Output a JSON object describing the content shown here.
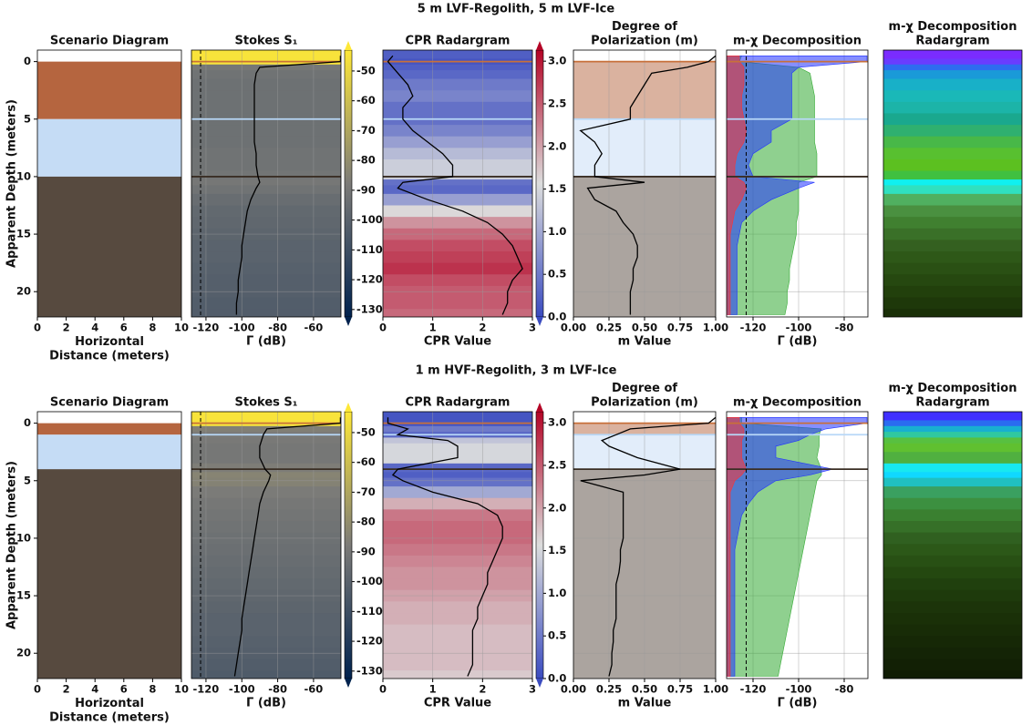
{
  "chart_data": [
    {
      "title": "5 m LVF-Regolith, 5 m LVF-Ice",
      "ylabel": "Apparent Depth (meters)",
      "ylim": [
        22.2,
        -1
      ],
      "yticks": [
        0,
        5,
        10,
        15,
        20
      ],
      "depth": [
        -0.5,
        0,
        0.5,
        1,
        2,
        3,
        4,
        5,
        6,
        7,
        8,
        9,
        10,
        10.5,
        11,
        12,
        13,
        14,
        15,
        16,
        17,
        18,
        19,
        20,
        21,
        22
      ],
      "layers": [
        {
          "top": 0,
          "color": "#b5653f"
        },
        {
          "top": 5,
          "color": "#c5dcf5"
        },
        {
          "top": 10,
          "color": "#574a3f"
        }
      ],
      "interfaces": [
        {
          "depth": 0,
          "color": "#c8703a"
        },
        {
          "depth": 5,
          "color": "#b8d8f8"
        },
        {
          "depth": 10,
          "color": "#3a2e24"
        }
      ],
      "panels": [
        {
          "type": "layers",
          "title": "Scenario Diagram",
          "xlabel": "Horizontal\nDistance (meters)",
          "xlim": [
            0,
            10
          ],
          "xticks": [
            0,
            2,
            4,
            6,
            8,
            10
          ]
        },
        {
          "type": "profile",
          "title": "Stokes S₁",
          "xlabel": "Γ (dB)",
          "xlim": [
            -128.1,
            -44.7
          ],
          "xticks": [
            -120,
            -100,
            -80,
            -60
          ],
          "values": [
            -45,
            -45,
            -90,
            -92,
            -93,
            -93,
            -93,
            -93,
            -93,
            -93,
            -92,
            -92,
            -91,
            -90,
            -92,
            -95,
            -97,
            -98,
            -99,
            -100,
            -100,
            -101,
            -102,
            -102,
            -103,
            -103
          ],
          "color": "#000000",
          "background": "colormap",
          "colormap": [
            "#00224e",
            "#7c7b78",
            "#fee838"
          ],
          "clim": [
            -132.5,
            -43
          ],
          "cticks": [
            -130,
            -120,
            -110,
            -100,
            -90,
            -80,
            -70,
            -60,
            -50
          ],
          "reference_line": -123,
          "grid": true
        },
        {
          "type": "profile",
          "title": "CPR Radargram",
          "xlabel": "CPR Value",
          "xlim": [
            0,
            3
          ],
          "xticks": [
            0,
            1,
            2,
            3
          ],
          "values": [
            0.2,
            0.1,
            0.2,
            0.3,
            0.5,
            0.6,
            0.4,
            0.4,
            0.6,
            0.9,
            1.2,
            1.4,
            1.4,
            0.4,
            0.3,
            0.9,
            1.6,
            2.1,
            2.4,
            2.6,
            2.7,
            2.8,
            2.6,
            2.5,
            2.5,
            2.4
          ],
          "color": "#000000",
          "background": "colormap",
          "colormap": [
            "#3b4cc0",
            "#dcdddd",
            "#b40426"
          ],
          "clim": [
            0,
            3.13
          ],
          "cticks": [
            {
              "value": 0,
              "label": "0.0"
            },
            0.5,
            {
              "value": 1,
              "label": "1.0"
            },
            1.5,
            {
              "value": 2,
              "label": "2.0"
            },
            2.5,
            {
              "value": 3,
              "label": "3.0"
            }
          ],
          "grid": true
        },
        {
          "type": "profile",
          "title": "Degree of\nPolarization (m)",
          "xlabel": "m Value",
          "xlim": [
            0,
            1
          ],
          "xticks": [
            {
              "value": 0,
              "label": "0.00"
            },
            0.25,
            {
              "value": 0.5,
              "label": "0.50"
            },
            0.75,
            {
              "value": 1,
              "label": "1.00"
            }
          ],
          "values": [
            1.0,
            0.95,
            0.8,
            0.55,
            0.5,
            0.45,
            0.4,
            0.4,
            0.05,
            0.15,
            0.2,
            0.15,
            0.15,
            0.5,
            0.1,
            0.15,
            0.3,
            0.35,
            0.42,
            0.45,
            0.45,
            0.42,
            0.42,
            0.4,
            0.4,
            0.4
          ],
          "color": "#000000",
          "background": "layers",
          "layer_opacity": 0.5,
          "grid": true
        },
        {
          "type": "area",
          "title": "m-χ Decomposition",
          "xlabel": "Γ (dB)",
          "xlim": [
            -131.6,
            -69.6
          ],
          "xticks": [
            -120,
            -100,
            -80
          ],
          "series": [
            {
              "color": "#33aa33",
              "values": [
                -125,
                -126,
                -100,
                -95,
                -94,
                -93,
                -93,
                -93,
                -93,
                -93,
                -92,
                -92,
                -92,
                -100,
                -100,
                -100,
                -100,
                -101,
                -101,
                -102,
                -103,
                -104,
                -104,
                -105,
                -105,
                -106
              ]
            },
            {
              "color": "#2233ff",
              "values": [
                -70,
                -70,
                -100,
                -103,
                -103,
                -103,
                -103,
                -103,
                -112,
                -112,
                -120,
                -122,
                -120,
                -93,
                -100,
                -112,
                -120,
                -125,
                -126,
                -127,
                -127,
                -127,
                -127,
                -127,
                -127,
                -127
              ]
            },
            {
              "color": "#ff3333",
              "values": [
                -126,
                -126,
                -124,
                -124,
                -124,
                -125,
                -125,
                -124,
                -123,
                -124,
                -127,
                -128,
                -128,
                -124,
                -123,
                -125,
                -128,
                -129,
                -130,
                -130,
                -130,
                -130,
                -130,
                -130,
                -130,
                -130
              ]
            }
          ],
          "opacity": 0.55,
          "reference_line": -123,
          "grid": true
        },
        {
          "type": "bands",
          "title": "m-χ Decomposition\nRadargram",
          "band_colors": [
            "#7a2cff",
            "#6a3cff",
            "#2e6cf0",
            "#1a9ad8",
            "#18b0c8",
            "#1ab8b8",
            "#1cb4a8",
            "#1aa88e",
            "#2fb070",
            "#48b848",
            "#58c030",
            "#5cc020",
            "#40c040",
            "#10f0f0",
            "#30e0c0",
            "#50b060",
            "#4a9040",
            "#408030",
            "#3a7028",
            "#346020",
            "#2e5818",
            "#2a5014",
            "#264810",
            "#22400c",
            "#1e380a",
            "#1a3008"
          ]
        }
      ]
    },
    {
      "title": "1 m HVF-Regolith, 3 m LVF-Ice",
      "ylabel": "Apparent Depth (meters)",
      "ylim": [
        22.2,
        -1
      ],
      "yticks": [
        0,
        5,
        10,
        15,
        20
      ],
      "depth": [
        -0.5,
        0,
        0.5,
        1,
        1.5,
        2,
        3,
        4,
        4.5,
        5,
        6,
        7,
        8,
        9,
        10,
        11,
        12,
        13,
        14,
        15,
        16,
        17,
        18,
        19,
        20,
        21,
        22
      ],
      "layers": [
        {
          "top": 0,
          "color": "#b5653f"
        },
        {
          "top": 1,
          "color": "#c5dcf5"
        },
        {
          "top": 4,
          "color": "#574a3f"
        }
      ],
      "interfaces": [
        {
          "depth": 0,
          "color": "#c8703a"
        },
        {
          "depth": 1,
          "color": "#b8d8f8"
        },
        {
          "depth": 4,
          "color": "#3a2e24"
        }
      ],
      "panels": [
        {
          "type": "layers",
          "title": "Scenario Diagram",
          "xlabel": "Horizontal\nDistance (meters)",
          "xlim": [
            0,
            10
          ],
          "xticks": [
            0,
            2,
            4,
            6,
            8,
            10
          ]
        },
        {
          "type": "profile",
          "title": "Stokes S₁",
          "xlabel": "Γ (dB)",
          "xlim": [
            -128.1,
            -44.7
          ],
          "xticks": [
            -120,
            -100,
            -80,
            -60
          ],
          "values": [
            -45,
            -45,
            -86,
            -88,
            -89,
            -90,
            -90,
            -87,
            -84,
            -85,
            -88,
            -90,
            -91,
            -92,
            -93,
            -94,
            -95,
            -96,
            -97,
            -98,
            -99,
            -100,
            -100,
            -101,
            -102,
            -103,
            -104
          ],
          "color": "#000000",
          "background": "colormap",
          "colormap": [
            "#00224e",
            "#7c7b78",
            "#fee838"
          ],
          "clim": [
            -132.5,
            -43
          ],
          "cticks": [
            -130,
            -120,
            -110,
            -100,
            -90,
            -80,
            -70,
            -60,
            -50
          ],
          "reference_line": -123,
          "grid": true
        },
        {
          "type": "profile",
          "title": "CPR Radargram",
          "xlabel": "CPR Value",
          "xlim": [
            0,
            3
          ],
          "xticks": [
            0,
            1,
            2,
            3
          ],
          "values": [
            0.1,
            0.1,
            0.5,
            0.3,
            1.3,
            1.5,
            1.5,
            0.3,
            0.2,
            0.4,
            1.0,
            1.9,
            2.3,
            2.4,
            2.4,
            2.3,
            2.2,
            2.1,
            2.1,
            2.0,
            1.9,
            1.9,
            1.8,
            1.8,
            1.8,
            1.8,
            1.7
          ],
          "color": "#000000",
          "background": "colormap",
          "colormap": [
            "#3b4cc0",
            "#dcdddd",
            "#b40426"
          ],
          "clim": [
            0,
            3.13
          ],
          "cticks": [
            {
              "value": 0,
              "label": "0.0"
            },
            0.5,
            {
              "value": 1,
              "label": "1.0"
            },
            1.5,
            {
              "value": 2,
              "label": "2.0"
            },
            2.5,
            {
              "value": 3,
              "label": "3.0"
            }
          ],
          "grid": true
        },
        {
          "type": "profile",
          "title": "Degree of\nPolarization (m)",
          "xlabel": "m Value",
          "xlim": [
            0,
            1
          ],
          "xticks": [
            {
              "value": 0,
              "label": "0.00"
            },
            0.25,
            {
              "value": 0.5,
              "label": "0.50"
            },
            0.75,
            {
              "value": 1,
              "label": "1.00"
            }
          ],
          "values": [
            1.0,
            0.95,
            0.4,
            0.3,
            0.2,
            0.25,
            0.45,
            0.75,
            0.5,
            0.05,
            0.35,
            0.35,
            0.35,
            0.35,
            0.35,
            0.33,
            0.33,
            0.32,
            0.3,
            0.3,
            0.3,
            0.3,
            0.28,
            0.28,
            0.27,
            0.27,
            0.25
          ],
          "color": "#000000",
          "background": "layers",
          "layer_opacity": 0.5,
          "grid": true
        },
        {
          "type": "area",
          "title": "m-χ Decomposition",
          "xlabel": "Γ (dB)",
          "xlim": [
            -131.6,
            -69.6
          ],
          "xticks": [
            -120,
            -100,
            -80
          ],
          "series": [
            {
              "color": "#33aa33",
              "values": [
                -125,
                -125,
                -90,
                -91,
                -91,
                -91,
                -92,
                -90,
                -90,
                -92,
                -93,
                -94,
                -95,
                -96,
                -97,
                -98,
                -99,
                -100,
                -101,
                -102,
                -103,
                -104,
                -105,
                -106,
                -107,
                -108,
                -109
              ]
            },
            {
              "color": "#2233ff",
              "values": [
                -70,
                -70,
                -88,
                -95,
                -100,
                -110,
                -110,
                -85,
                -95,
                -110,
                -118,
                -122,
                -125,
                -126,
                -127,
                -128,
                -128,
                -128,
                -128,
                -128,
                -128,
                -128,
                -128,
                -128,
                -128,
                -128,
                -128
              ]
            },
            {
              "color": "#ff3333",
              "values": [
                -126,
                -126,
                -124,
                -124,
                -125,
                -125,
                -125,
                -123,
                -125,
                -128,
                -130,
                -130,
                -130,
                -130,
                -130,
                -130,
                -130,
                -130,
                -130,
                -130,
                -130,
                -130,
                -130,
                -130,
                -130,
                -130,
                -130
              ]
            }
          ],
          "opacity": 0.55,
          "reference_line": -123,
          "grid": true
        },
        {
          "type": "bands",
          "title": "m-χ Decomposition\nRadargram",
          "band_colors": [
            "#4030ff",
            "#2a6cf0",
            "#18b0d0",
            "#30c8a0",
            "#58c040",
            "#60c030",
            "#50b040",
            "#18e8f0",
            "#10d8ff",
            "#20c0c0",
            "#3aa060",
            "#3c9040",
            "#3a8030",
            "#367028",
            "#306020",
            "#2c5818",
            "#285014",
            "#244810",
            "#20400e",
            "#1e3a0c",
            "#1c340a",
            "#1a3008",
            "#182c07",
            "#162806",
            "#142406",
            "#122005",
            "#101c04"
          ]
        }
      ]
    }
  ]
}
